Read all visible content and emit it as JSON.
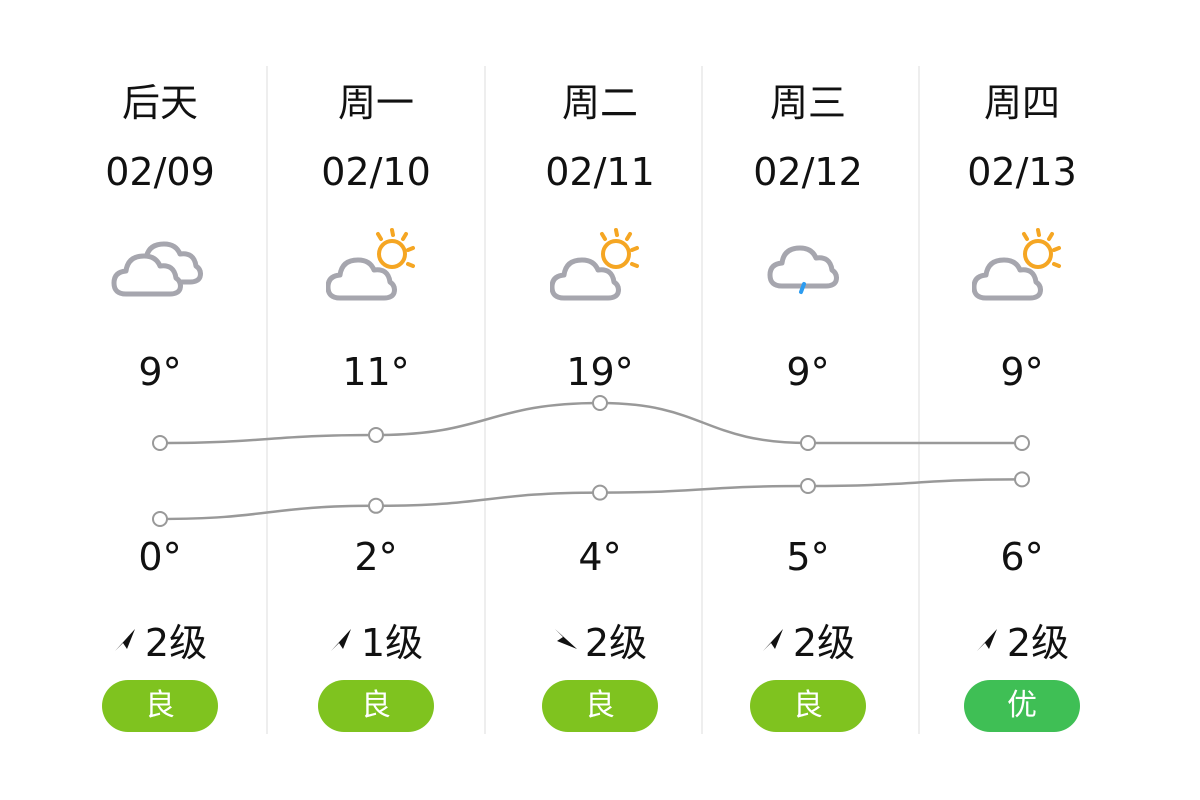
{
  "days": [
    {
      "day": "后天",
      "date": "02/09",
      "icon": "cloudy-icon",
      "high": "9°",
      "low": "0°",
      "high_value": 9,
      "low_value": 0,
      "wind_dir": "northeast",
      "wind": "2级",
      "aqi": "良",
      "aqi_color": "#7fc31f"
    },
    {
      "day": "周一",
      "date": "02/10",
      "icon": "partly-cloudy-icon",
      "high": "11°",
      "low": "2°",
      "high_value": 11,
      "low_value": 2,
      "wind_dir": "northeast",
      "wind": "1级",
      "aqi": "良",
      "aqi_color": "#7fc31f"
    },
    {
      "day": "周二",
      "date": "02/11",
      "icon": "partly-cloudy-icon",
      "high": "19°",
      "low": "4°",
      "high_value": 19,
      "low_value": 4,
      "wind_dir": "southeast",
      "wind": "2级",
      "aqi": "良",
      "aqi_color": "#7fc31f"
    },
    {
      "day": "周三",
      "date": "02/12",
      "icon": "light-rain-icon",
      "high": "9°",
      "low": "5°",
      "high_value": 9,
      "low_value": 5,
      "wind_dir": "northeast",
      "wind": "2级",
      "aqi": "良",
      "aqi_color": "#7fc31f"
    },
    {
      "day": "周四",
      "date": "02/13",
      "icon": "partly-cloudy-icon",
      "high": "9°",
      "low": "6°",
      "high_value": 9,
      "low_value": 6,
      "wind_dir": "northeast",
      "wind": "2级",
      "aqi": "优",
      "aqi_color": "#3fbf55"
    }
  ],
  "colors": {
    "cloud": "#a6a6ae",
    "sun": "#f5a623",
    "rain": "#2c9cf0",
    "line": "#999999"
  }
}
